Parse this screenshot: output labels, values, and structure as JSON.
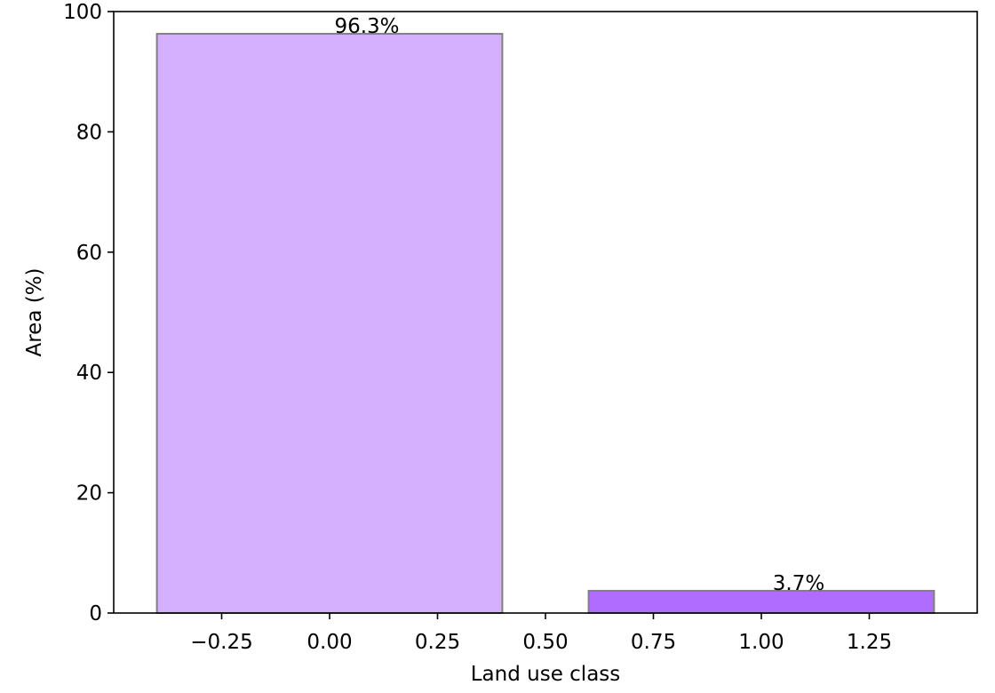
{
  "chart_data": {
    "type": "bar",
    "x": [
      0,
      1
    ],
    "values": [
      96.3,
      3.7
    ],
    "bar_width": 0.8,
    "data_labels": [
      "96.3%",
      "3.7%"
    ],
    "colors": [
      "#d5b0ff",
      "#b06cff"
    ],
    "edge_color": "#808080",
    "title": "",
    "xlabel": "Land use class",
    "ylabel": "Area (%)",
    "xlim": [
      -0.5,
      1.5
    ],
    "ylim": [
      0,
      100
    ],
    "xticks": [
      -0.25,
      0.0,
      0.25,
      0.5,
      0.75,
      1.0,
      1.25
    ],
    "xtick_labels": [
      "−0.25",
      "0.00",
      "0.25",
      "0.50",
      "0.75",
      "1.00",
      "1.25"
    ],
    "yticks": [
      0,
      20,
      40,
      60,
      80,
      100
    ],
    "ytick_labels": [
      "0",
      "20",
      "40",
      "60",
      "80",
      "100"
    ],
    "grid": false
  }
}
